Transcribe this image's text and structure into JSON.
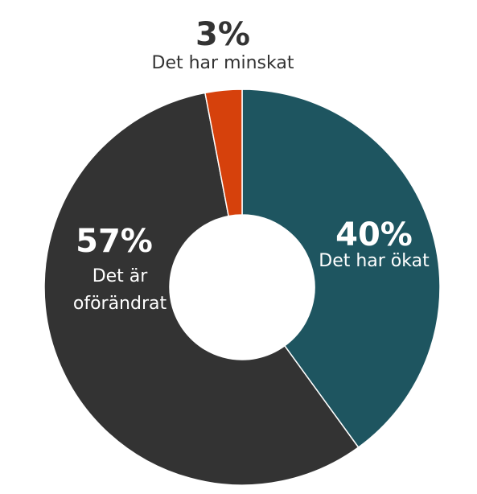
{
  "chart_data": {
    "type": "pie",
    "donut": true,
    "title": "",
    "slices": [
      {
        "percent_label": "40%",
        "label_lines": [
          "Det har ökat"
        ],
        "value": 40,
        "color": "#1e5560"
      },
      {
        "percent_label": "57%",
        "label_lines": [
          "Det är",
          "oförändrat"
        ],
        "value": 57,
        "color": "#333333"
      },
      {
        "percent_label": "3%",
        "label_lines": [
          "Det har minskat"
        ],
        "value": 3,
        "color": "#d6410c"
      }
    ],
    "label_colors": {
      "on_slice": "#ffffff",
      "outside": "#333333"
    }
  }
}
